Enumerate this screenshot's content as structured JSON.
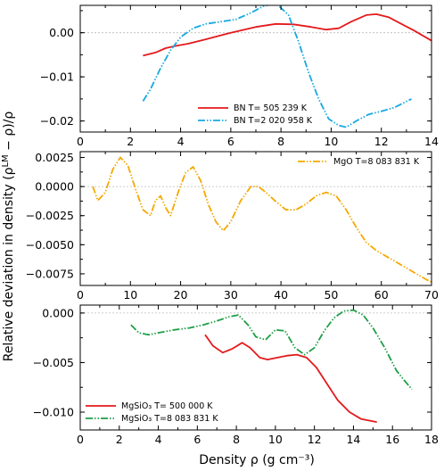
{
  "figure": {
    "ylabel": "Relative deviation in density (ρ^{LM} − ρ)/ρ",
    "xlabel": "Density ρ (g cm⁻³)"
  },
  "chart_data": [
    {
      "type": "line",
      "panel": "top",
      "xlim": [
        0,
        14
      ],
      "ylim": [
        -0.0225,
        0.0062
      ],
      "xticks": [
        0,
        2,
        4,
        6,
        8,
        10,
        12,
        14
      ],
      "xtick_labels": [
        "0",
        "2",
        "4",
        "6",
        "8",
        "10",
        "12",
        "14"
      ],
      "yticks": [
        0.0,
        -0.01,
        -0.02
      ],
      "ytick_labels": [
        "0.00",
        "−0.01",
        "−0.02"
      ],
      "legend_position": "bottom-right",
      "series": [
        {
          "name": "BN T=  505 239 K",
          "color": "#e41a1c",
          "dash": "solid",
          "x": [
            2.5,
            3.0,
            3.4,
            3.8,
            4.3,
            5.0,
            6.0,
            7.0,
            7.8,
            8.5,
            9.2,
            9.8,
            10.3,
            10.8,
            11.4,
            11.8,
            12.3,
            12.8,
            13.3,
            14.0
          ],
          "y": [
            -0.0052,
            -0.0045,
            -0.0035,
            -0.003,
            -0.0025,
            -0.0015,
            0.0,
            0.0013,
            0.002,
            0.0019,
            0.0013,
            0.0007,
            0.001,
            0.0025,
            0.004,
            0.0042,
            0.0035,
            0.002,
            0.0005,
            -0.0018
          ]
        },
        {
          "name": "BN T=2 020 958 K",
          "color": "#17a9e1",
          "dash": "dashdotdot",
          "x": [
            2.5,
            2.8,
            3.2,
            3.6,
            4.0,
            4.5,
            5.0,
            5.6,
            6.2,
            6.8,
            7.3,
            7.8,
            8.3,
            8.7,
            9.1,
            9.5,
            9.9,
            10.3,
            10.6,
            11.0,
            11.5,
            12.0,
            12.5,
            13.2
          ],
          "y": [
            -0.0155,
            -0.0128,
            -0.008,
            -0.004,
            -0.001,
            0.001,
            0.002,
            0.0025,
            0.003,
            0.0045,
            0.006,
            0.0067,
            0.004,
            -0.002,
            -0.009,
            -0.015,
            -0.0195,
            -0.021,
            -0.0214,
            -0.02,
            -0.0185,
            -0.0178,
            -0.017,
            -0.015
          ]
        }
      ]
    },
    {
      "type": "line",
      "panel": "middle",
      "xlim": [
        0,
        70
      ],
      "ylim": [
        -0.0085,
        0.003
      ],
      "xticks": [
        0,
        10,
        20,
        30,
        40,
        50,
        60,
        70
      ],
      "xtick_labels": [
        "0",
        "10",
        "20",
        "30",
        "40",
        "50",
        "60",
        "70"
      ],
      "yticks": [
        0.0025,
        0.0,
        -0.0025,
        -0.005,
        -0.0075
      ],
      "ytick_labels": [
        "0.0025",
        "0.0000",
        "−0.0025",
        "−0.0050",
        "−0.0075"
      ],
      "legend_position": "top-right",
      "series": [
        {
          "name": "MgO T=8 083 831 K",
          "color": "#f5a800",
          "dash": "dashdotdot",
          "x": [
            2.5,
            3.5,
            5.0,
            6.5,
            8.0,
            9.5,
            11.0,
            12.5,
            14.0,
            15.0,
            16.0,
            17.0,
            18.0,
            19.5,
            21.0,
            22.5,
            24.0,
            25.5,
            27.0,
            28.5,
            30.0,
            32.0,
            34.0,
            35.5,
            37.0,
            39.0,
            41.0,
            43.0,
            45.0,
            47.0,
            49.0,
            51.0,
            53.0,
            55.0,
            57.0,
            59.0,
            61.0,
            63.0,
            65.0,
            67.0,
            69.0,
            70.0
          ],
          "y": [
            0.0,
            -0.0012,
            -0.0005,
            0.0015,
            0.0025,
            0.0018,
            -0.0002,
            -0.002,
            -0.0025,
            -0.0012,
            -0.0008,
            -0.0018,
            -0.0025,
            -0.0005,
            0.0012,
            0.0017,
            0.0005,
            -0.0015,
            -0.003,
            -0.0038,
            -0.003,
            -0.0012,
            0.0,
            0.0,
            -0.0005,
            -0.0013,
            -0.002,
            -0.002,
            -0.0015,
            -0.0008,
            -0.0005,
            -0.0008,
            -0.002,
            -0.0035,
            -0.0048,
            -0.0055,
            -0.006,
            -0.0065,
            -0.007,
            -0.0075,
            -0.008,
            -0.0082
          ]
        }
      ]
    },
    {
      "type": "line",
      "panel": "bottom",
      "xlim": [
        0,
        18
      ],
      "ylim": [
        -0.0118,
        0.0008
      ],
      "xticks": [
        0,
        2,
        4,
        6,
        8,
        10,
        12,
        14,
        16,
        18
      ],
      "xtick_labels": [
        "0",
        "2",
        "4",
        "6",
        "8",
        "10",
        "12",
        "14",
        "16",
        "18"
      ],
      "yticks": [
        0.0,
        -0.005,
        -0.01
      ],
      "ytick_labels": [
        "0.000",
        "−0.005",
        "−0.010"
      ],
      "legend_position": "bottom-left",
      "series": [
        {
          "name": "MgSiO₃ T=  500 000 K",
          "color": "#e41a1c",
          "dash": "solid",
          "x": [
            6.4,
            6.8,
            7.3,
            7.8,
            8.3,
            8.7,
            9.2,
            9.6,
            10.1,
            10.6,
            11.1,
            11.6,
            12.1,
            12.6,
            13.2,
            13.8,
            14.4,
            15.2
          ],
          "y": [
            -0.0022,
            -0.0033,
            -0.004,
            -0.0036,
            -0.003,
            -0.0035,
            -0.0045,
            -0.0047,
            -0.0045,
            -0.0043,
            -0.0042,
            -0.0045,
            -0.0055,
            -0.007,
            -0.0088,
            -0.01,
            -0.0107,
            -0.011
          ]
        },
        {
          "name": "MgSiO₃ T=8 083 831 K",
          "color": "#1e9e47",
          "dash": "dashdotdot",
          "x": [
            2.6,
            3.0,
            3.5,
            4.0,
            4.8,
            5.6,
            6.3,
            7.0,
            7.6,
            8.1,
            8.6,
            9.0,
            9.5,
            10.0,
            10.5,
            11.0,
            11.5,
            12.0,
            12.5,
            13.0,
            13.5,
            14.0,
            14.5,
            15.0,
            15.6,
            16.2,
            16.6,
            17.0
          ],
          "y": [
            -0.0012,
            -0.002,
            -0.0022,
            -0.002,
            -0.0017,
            -0.0015,
            -0.0012,
            -0.0008,
            -0.0004,
            -0.0002,
            -0.0012,
            -0.0024,
            -0.0027,
            -0.0017,
            -0.0018,
            -0.0035,
            -0.0042,
            -0.0035,
            -0.0018,
            -0.0005,
            0.0002,
            0.0003,
            -0.0002,
            -0.0015,
            -0.0035,
            -0.0058,
            -0.0068,
            -0.0077
          ]
        }
      ]
    }
  ]
}
